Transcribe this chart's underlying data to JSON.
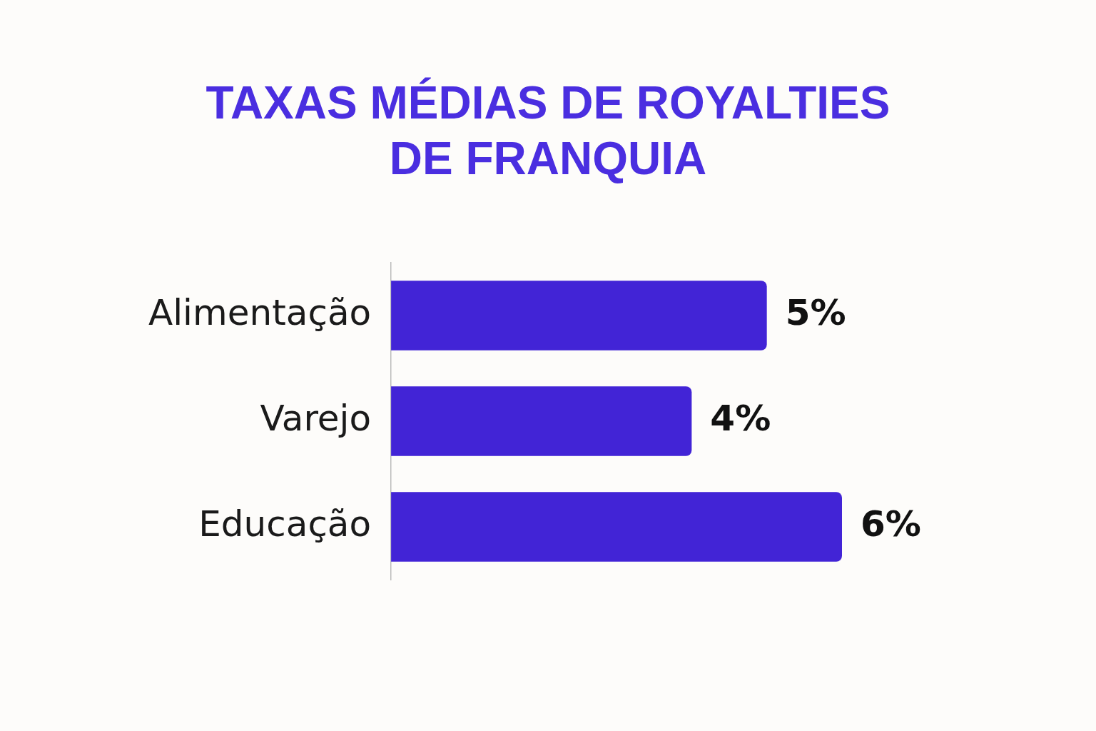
{
  "chart_data": {
    "type": "bar",
    "orientation": "horizontal",
    "title": "TAXAS MÉDIAS DE ROYALTIES DE FRANQUIA",
    "categories": [
      "Alimentação",
      "Varejo",
      "Educação"
    ],
    "values": [
      5,
      4,
      6
    ],
    "value_labels": [
      "5%",
      "4%",
      "6%"
    ],
    "color": "#4224d6",
    "tick_labels": "y",
    "grid": false,
    "legend": false
  }
}
